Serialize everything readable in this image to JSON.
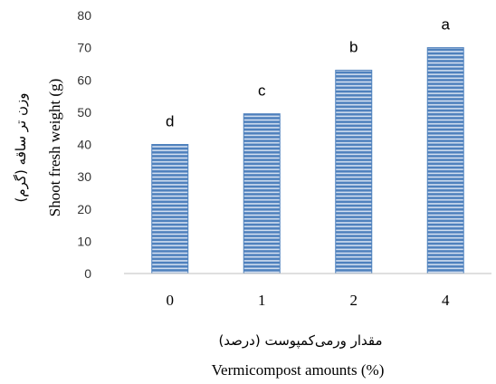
{
  "chart_data": {
    "type": "bar",
    "categories": [
      "0",
      "1",
      "2",
      "4"
    ],
    "values": [
      40,
      49.5,
      63,
      70
    ],
    "bar_labels": [
      "d",
      "c",
      "b",
      "a"
    ],
    "ylim": [
      0,
      80
    ],
    "yticks": [
      "0",
      "10",
      "20",
      "30",
      "40",
      "50",
      "60",
      "70",
      "80"
    ],
    "ylabel_en": "Shoot fresh weight (g)",
    "ylabel_fa": "وزن تر ساقه (گرم)",
    "xlabel_en": "Vermicompost amounts (%)",
    "xlabel_fa": "مقدار ورمی‌کمپوست (درصد)",
    "grid": false,
    "bar_color": "#4f81bd",
    "bar_stripe_color": "#dbe5f3"
  }
}
